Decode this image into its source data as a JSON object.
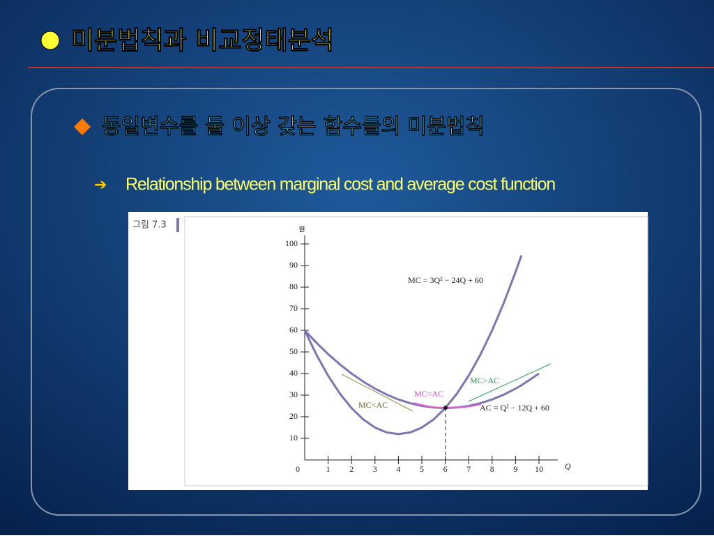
{
  "slide": {
    "title": "미분법칙과 비교정태분석",
    "bullet": "동일변수를 둘 이상 갖는 함수들의 미분법칙",
    "subbullet": "Relationship between marginal cost and average cost function",
    "figure_label": "그림 7.3"
  },
  "chart_data": {
    "type": "line",
    "x_label": "Q",
    "y_label": "원",
    "x": [
      0,
      0.5,
      1,
      1.5,
      2,
      2.5,
      3,
      3.5,
      4,
      4.5,
      5,
      5.5,
      6,
      6.5,
      7,
      7.5,
      8,
      8.5,
      9,
      9.25,
      10
    ],
    "series": [
      {
        "name": "MC = 3Q² − 24Q + 60",
        "color": "#7b76b0",
        "values": [
          60,
          48.75,
          39,
          30.75,
          24,
          18.75,
          15,
          12.75,
          12,
          12.75,
          15,
          18.75,
          24,
          30.75,
          39,
          48.75,
          60,
          72.75,
          87,
          94.69,
          null
        ]
      },
      {
        "name": "AC = Q² − 12Q + 60",
        "color": "#7b76b0",
        "values": [
          60,
          54.25,
          49,
          44.25,
          40,
          36.25,
          33,
          30.25,
          28,
          26.25,
          25,
          24.25,
          24,
          24.25,
          25,
          26.25,
          28,
          30.25,
          33,
          34.56,
          40
        ]
      }
    ],
    "annotations": [
      "MC>AC",
      "MC=AC",
      "MC<AC"
    ],
    "xlim": [
      0,
      10.8
    ],
    "ylim": [
      0,
      104
    ],
    "xticks": [
      0,
      1,
      2,
      3,
      4,
      5,
      6,
      7,
      8,
      9,
      10
    ],
    "yticks": [
      10,
      20,
      30,
      40,
      50,
      60,
      70,
      80,
      90,
      100
    ]
  }
}
